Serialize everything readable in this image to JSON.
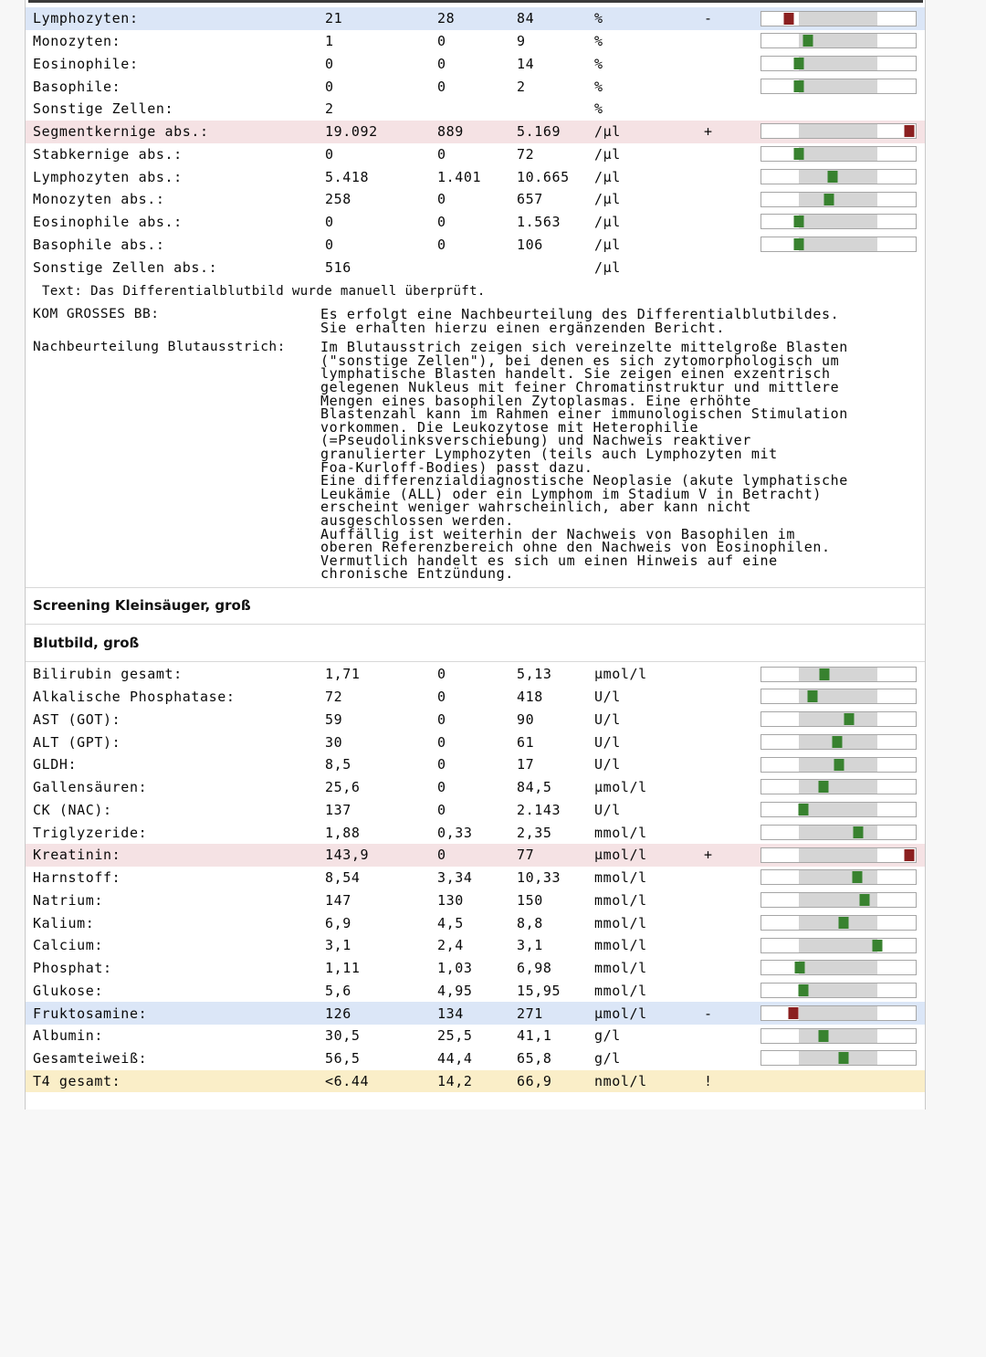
{
  "report": {
    "headers": {
      "screening": "Screening Kleinsäuger, groß",
      "blutbild": "Blutbild, groß"
    },
    "text_note": {
      "label": "Text:",
      "content": "Das Differentialblutbild wurde manuell überprüft."
    },
    "section1_rows": [
      {
        "name": "Lymphozyten:",
        "value": "21",
        "min": "28",
        "max": "84",
        "unit": "%",
        "flag": "-",
        "highlight": "blue",
        "bar": {
          "frac": 0.18,
          "color": "red"
        }
      },
      {
        "name": "Monozyten:",
        "value": "1",
        "min": "0",
        "max": "9",
        "unit": "%",
        "flag": "",
        "highlight": null,
        "bar": {
          "frac": 0.3,
          "color": "green"
        }
      },
      {
        "name": "Eosinophile:",
        "value": "0",
        "min": "0",
        "max": "14",
        "unit": "%",
        "flag": "",
        "highlight": null,
        "bar": {
          "frac": 0.24,
          "color": "green"
        }
      },
      {
        "name": "Basophile:",
        "value": "0",
        "min": "0",
        "max": "2",
        "unit": "%",
        "flag": "",
        "highlight": null,
        "bar": {
          "frac": 0.24,
          "color": "green"
        }
      },
      {
        "name": "Sonstige Zellen:",
        "value": "2",
        "min": "",
        "max": "",
        "unit": "%",
        "flag": "",
        "highlight": null,
        "bar": null
      },
      {
        "name": "Segmentkernige abs.:",
        "value": "19.092",
        "min": "889",
        "max": "5.169",
        "unit": "/µl",
        "flag": "+",
        "highlight": "pink",
        "bar": {
          "frac": 0.96,
          "color": "red"
        }
      },
      {
        "name": "Stabkernige abs.:",
        "value": "0",
        "min": "0",
        "max": "72",
        "unit": "/µl",
        "flag": "",
        "highlight": null,
        "bar": {
          "frac": 0.24,
          "color": "green"
        }
      },
      {
        "name": "Lymphozyten abs.:",
        "value": "5.418",
        "min": "1.401",
        "max": "10.665",
        "unit": "/µl",
        "flag": "",
        "highlight": null,
        "bar": {
          "frac": 0.46,
          "color": "green"
        }
      },
      {
        "name": "Monozyten abs.:",
        "value": "258",
        "min": "0",
        "max": "657",
        "unit": "/µl",
        "flag": "",
        "highlight": null,
        "bar": {
          "frac": 0.44,
          "color": "green"
        }
      },
      {
        "name": "Eosinophile abs.:",
        "value": "0",
        "min": "0",
        "max": "1.563",
        "unit": "/µl",
        "flag": "",
        "highlight": null,
        "bar": {
          "frac": 0.24,
          "color": "green"
        }
      },
      {
        "name": "Basophile abs.:",
        "value": "0",
        "min": "0",
        "max": "106",
        "unit": "/µl",
        "flag": "",
        "highlight": null,
        "bar": {
          "frac": 0.24,
          "color": "green"
        }
      },
      {
        "name": "Sonstige Zellen abs.:",
        "value": "516",
        "min": "",
        "max": "",
        "unit": "/µl",
        "flag": "",
        "highlight": null,
        "bar": null
      }
    ],
    "comment_blocks": [
      {
        "label": "KOM GROSSES BB:",
        "lines": [
          "Es erfolgt eine Nachbeurteilung des Differentialblutbildes.",
          "Sie erhalten hierzu einen ergänzenden Bericht."
        ]
      },
      {
        "label": "Nachbeurteilung Blutausstrich:",
        "lines": [
          "Im Blutausstrich zeigen sich vereinzelte mittelgroße Blasten",
          "(\"sonstige Zellen\"), bei denen es sich zytomorphologisch um",
          "lymphatische Blasten handelt. Sie zeigen einen exzentrisch",
          "gelegenen Nukleus mit feiner Chromatinstruktur und mittlere",
          "Mengen eines basophilen Zytoplasmas. Eine erhöhte",
          "Blastenzahl kann im Rahmen einer immunologischen Stimulation",
          "vorkommen. Die Leukozytose mit Heterophilie",
          "(=Pseudolinksverschiebung) und Nachweis reaktiver",
          "granulierter Lymphozyten (teils auch Lymphozyten mit",
          "Foa-Kurloff-Bodies) passt dazu.",
          "Eine differenzialdiagnostische Neoplasie (akute lymphatische",
          "Leukämie (ALL) oder ein Lymphom im Stadium V in Betracht)",
          "erscheint weniger wahrscheinlich, aber kann nicht",
          "ausgeschlossen werden.",
          "Auffällig ist weiterhin der Nachweis von Basophilen im",
          "oberen Referenzbereich ohne den Nachweis von Eosinophilen.",
          "Vermutlich handelt es sich um einen Hinweis auf eine",
          "chronische Entzündung."
        ]
      }
    ],
    "section2_rows": [
      {
        "name": "Bilirubin gesamt:",
        "value": "1,71",
        "min": "0",
        "max": "5,13",
        "unit": "µmol/l",
        "flag": "",
        "highlight": null,
        "bar": {
          "frac": 0.41,
          "color": "green"
        }
      },
      {
        "name": "Alkalische Phosphatase:",
        "value": "72",
        "min": "0",
        "max": "418",
        "unit": "U/l",
        "flag": "",
        "highlight": null,
        "bar": {
          "frac": 0.33,
          "color": "green"
        }
      },
      {
        "name": "AST (GOT):",
        "value": "59",
        "min": "0",
        "max": "90",
        "unit": "U/l",
        "flag": "",
        "highlight": null,
        "bar": {
          "frac": 0.57,
          "color": "green"
        }
      },
      {
        "name": "ALT (GPT):",
        "value": "30",
        "min": "0",
        "max": "61",
        "unit": "U/l",
        "flag": "",
        "highlight": null,
        "bar": {
          "frac": 0.49,
          "color": "green"
        }
      },
      {
        "name": "GLDH:",
        "value": "8,5",
        "min": "0",
        "max": "17",
        "unit": "U/l",
        "flag": "",
        "highlight": null,
        "bar": {
          "frac": 0.5,
          "color": "green"
        }
      },
      {
        "name": "Gallensäuren:",
        "value": "25,6",
        "min": "0",
        "max": "84,5",
        "unit": "µmol/l",
        "flag": "",
        "highlight": null,
        "bar": {
          "frac": 0.4,
          "color": "green"
        }
      },
      {
        "name": "CK (NAC):",
        "value": "137",
        "min": "0",
        "max": "2.143",
        "unit": "U/l",
        "flag": "",
        "highlight": null,
        "bar": {
          "frac": 0.27,
          "color": "green"
        }
      },
      {
        "name": "Triglyzeride:",
        "value": "1,88",
        "min": "0,33",
        "max": "2,35",
        "unit": "mmol/l",
        "flag": "",
        "highlight": null,
        "bar": {
          "frac": 0.63,
          "color": "green"
        }
      },
      {
        "name": "Kreatinin:",
        "value": "143,9",
        "min": "0",
        "max": "77",
        "unit": "µmol/l",
        "flag": "+",
        "highlight": "pink",
        "bar": {
          "frac": 0.96,
          "color": "red"
        }
      },
      {
        "name": "Harnstoff:",
        "value": "8,54",
        "min": "3,34",
        "max": "10,33",
        "unit": "mmol/l",
        "flag": "",
        "highlight": null,
        "bar": {
          "frac": 0.62,
          "color": "green"
        }
      },
      {
        "name": "Natrium:",
        "value": "147",
        "min": "130",
        "max": "150",
        "unit": "mmol/l",
        "flag": "",
        "highlight": null,
        "bar": {
          "frac": 0.67,
          "color": "green"
        }
      },
      {
        "name": "Kalium:",
        "value": "6,9",
        "min": "4,5",
        "max": "8,8",
        "unit": "mmol/l",
        "flag": "",
        "highlight": null,
        "bar": {
          "frac": 0.53,
          "color": "green"
        }
      },
      {
        "name": "Calcium:",
        "value": "3,1",
        "min": "2,4",
        "max": "3,1",
        "unit": "mmol/l",
        "flag": "",
        "highlight": null,
        "bar": {
          "frac": 0.75,
          "color": "green"
        }
      },
      {
        "name": "Phosphat:",
        "value": "1,11",
        "min": "1,03",
        "max": "6,98",
        "unit": "mmol/l",
        "flag": "",
        "highlight": null,
        "bar": {
          "frac": 0.25,
          "color": "green"
        }
      },
      {
        "name": "Glukose:",
        "value": "5,6",
        "min": "4,95",
        "max": "15,95",
        "unit": "mmol/l",
        "flag": "",
        "highlight": null,
        "bar": {
          "frac": 0.27,
          "color": "green"
        }
      },
      {
        "name": "Fruktosamine:",
        "value": "126",
        "min": "134",
        "max": "271",
        "unit": "µmol/l",
        "flag": "-",
        "highlight": "blue",
        "bar": {
          "frac": 0.21,
          "color": "red"
        }
      },
      {
        "name": "Albumin:",
        "value": "30,5",
        "min": "25,5",
        "max": "41,1",
        "unit": "g/l",
        "flag": "",
        "highlight": null,
        "bar": {
          "frac": 0.4,
          "color": "green"
        }
      },
      {
        "name": "Gesamteiweiß:",
        "value": "56,5",
        "min": "44,4",
        "max": "65,8",
        "unit": "g/l",
        "flag": "",
        "highlight": null,
        "bar": {
          "frac": 0.53,
          "color": "green"
        }
      },
      {
        "name": "T4 gesamt:",
        "value": "<6.44",
        "min": "14,2",
        "max": "66,9",
        "unit": "nmol/l",
        "flag": "!",
        "highlight": "yellow",
        "bar": null
      }
    ]
  },
  "colors": {
    "marker_normal": "#38822f",
    "marker_abnormal": "#8b2020",
    "highlight_low": "#dbe6f7",
    "highlight_high": "#f5e2e4",
    "highlight_alert": "#faeec8",
    "reference_band": "#d5d5d5"
  }
}
